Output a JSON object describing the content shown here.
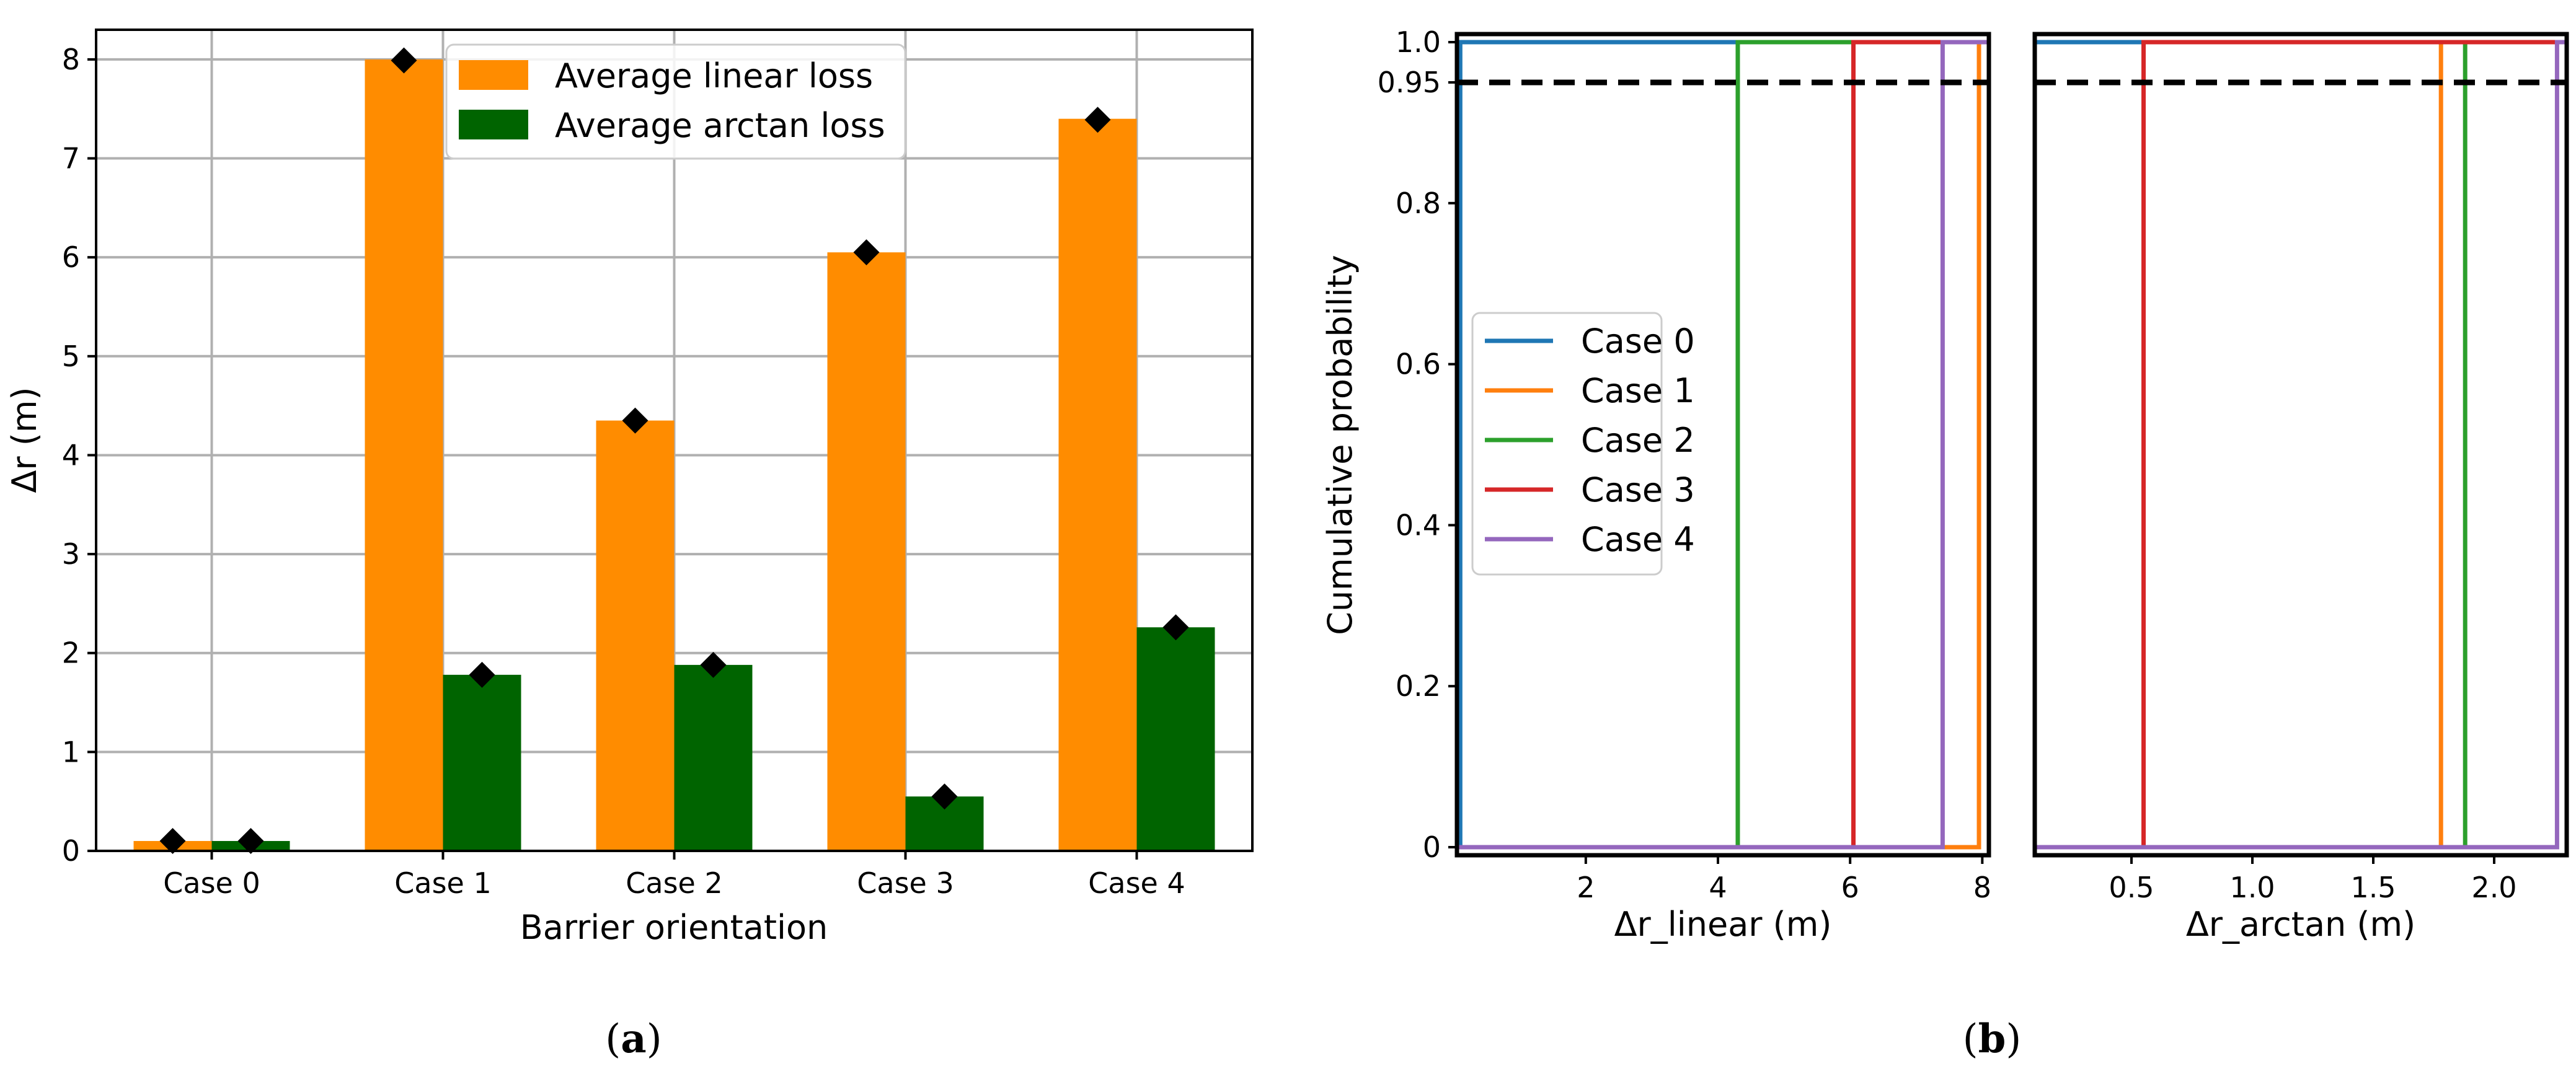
{
  "chart_data": [
    {
      "type": "bar",
      "title": "",
      "xlabel": "Barrier orientation",
      "ylabel": "Δr (m)",
      "ylim": [
        0,
        8.3
      ],
      "yticks": [
        "0",
        "1",
        "2",
        "3",
        "4",
        "5",
        "6",
        "7",
        "8"
      ],
      "grid": true,
      "legend_position": "top-center",
      "categories": [
        "Case 0",
        "Case 1",
        "Case 2",
        "Case 3",
        "Case 4"
      ],
      "series": [
        {
          "name": "Average linear loss",
          "color": "#ff8c00",
          "values": [
            0.1,
            8.0,
            4.35,
            6.05,
            7.4
          ]
        },
        {
          "name": "Average arctan loss",
          "color": "#006400",
          "values": [
            0.1,
            1.78,
            1.88,
            0.55,
            2.26
          ]
        }
      ],
      "markers": {
        "shape": "diamond",
        "color": "#000000",
        "linear": [
          0.1,
          7.99,
          4.35,
          6.05,
          7.39
        ],
        "arctan": [
          0.1,
          1.78,
          1.88,
          0.55,
          2.26
        ]
      },
      "panel_label": {
        "open": "(",
        "letter": "a",
        "close": ")"
      }
    },
    {
      "type": "line",
      "title": "",
      "xlabel": "Δr_linear (m)",
      "ylabel": "Cumulative probability",
      "xlim": [
        0.05,
        8.1
      ],
      "ylim": [
        -0.01,
        1.01
      ],
      "xticks": [
        2,
        4,
        6,
        8
      ],
      "xtick_labels": [
        "2",
        "4",
        "6",
        "8"
      ],
      "yticks": [
        0,
        0.2,
        0.4,
        0.6,
        0.8,
        0.95,
        1.0
      ],
      "ytick_labels": [
        "0",
        "0.2",
        "0.4",
        "0.6",
        "0.8",
        "0.95",
        "1.0"
      ],
      "threshold": {
        "value": 0.95,
        "style": "dashed",
        "color": "#000000"
      },
      "legend_position": "center-left",
      "series": [
        {
          "name": "Case 0",
          "color": "#1f77b4",
          "step_x": 0.1
        },
        {
          "name": "Case 1",
          "color": "#ff7f0e",
          "step_x": 7.95
        },
        {
          "name": "Case 2",
          "color": "#2ca02c",
          "step_x": 4.3
        },
        {
          "name": "Case 3",
          "color": "#d62728",
          "step_x": 6.05
        },
        {
          "name": "Case 4",
          "color": "#9467bd",
          "step_x": 7.4
        }
      ]
    },
    {
      "type": "line",
      "title": "",
      "xlabel": "Δr_arctan (m)",
      "ylabel": "",
      "xlim": [
        0.1,
        2.3
      ],
      "ylim": [
        -0.01,
        1.01
      ],
      "xticks": [
        0.5,
        1.0,
        1.5,
        2.0
      ],
      "xtick_labels": [
        "0.5",
        "1.0",
        "1.5",
        "2.0"
      ],
      "threshold": {
        "value": 0.95,
        "style": "dashed",
        "color": "#000000"
      },
      "series": [
        {
          "name": "Case 0",
          "color": "#1f77b4",
          "step_x": 0.1
        },
        {
          "name": "Case 1",
          "color": "#ff7f0e",
          "step_x": 1.78
        },
        {
          "name": "Case 2",
          "color": "#2ca02c",
          "step_x": 1.88
        },
        {
          "name": "Case 3",
          "color": "#d62728",
          "step_x": 0.55
        },
        {
          "name": "Case 4",
          "color": "#9467bd",
          "step_x": 2.26
        }
      ],
      "panel_label": {
        "open": "(",
        "letter": "b",
        "close": ")"
      }
    }
  ]
}
